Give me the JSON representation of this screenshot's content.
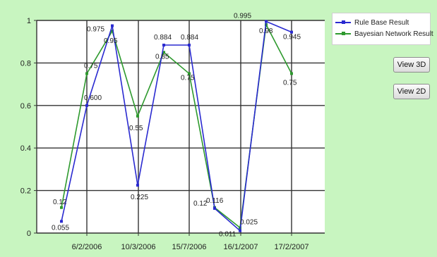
{
  "chart_data": {
    "type": "line",
    "x_tick_labels": [
      "6/2/2006",
      "10/3/2006",
      "15/7/2006",
      "16/1/2007",
      "17/2/2007"
    ],
    "ylim": [
      0,
      1
    ],
    "y_ticks": [
      0,
      0.2,
      0.4,
      0.6,
      0.8,
      1
    ],
    "y_tick_labels": [
      "0",
      "0.2",
      "0.4",
      "0.6",
      "0.8",
      "1"
    ],
    "grid": true,
    "legend_position": "top-right",
    "series": [
      {
        "name": "Rule Base Result",
        "color": "#2a2ad0",
        "values": [
          0.055,
          0.6,
          0.975,
          0.225,
          0.884,
          0.884,
          0.116,
          0.011,
          0.995,
          0.945
        ],
        "labels": [
          "0.055",
          "0.600",
          "0.975",
          "0.225",
          "0.884",
          "0.884",
          "0.116",
          "0.011",
          "0.995",
          "0.945"
        ]
      },
      {
        "name": "Bayesian Network Result",
        "color": "#2e9a2e",
        "values": [
          0.12,
          0.75,
          0.95,
          0.55,
          0.85,
          0.75,
          0.12,
          0.025,
          0.98,
          0.75
        ],
        "labels": [
          "0.12",
          "0.75",
          "0.95",
          "0.55",
          "0.85",
          "0.75",
          "0.12",
          "0.025",
          "0.98",
          "0.75"
        ]
      }
    ]
  },
  "buttons": {
    "view3d": "View 3D",
    "view2d": "View 2D"
  }
}
